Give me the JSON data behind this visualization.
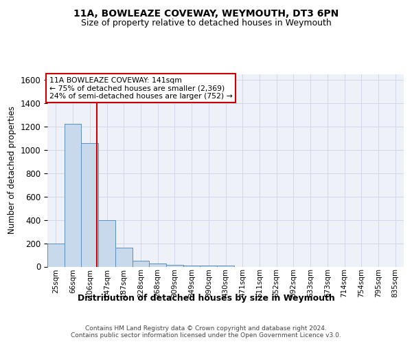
{
  "title1": "11A, BOWLEAZE COVEWAY, WEYMOUTH, DT3 6PN",
  "title2": "Size of property relative to detached houses in Weymouth",
  "xlabel": "Distribution of detached houses by size in Weymouth",
  "ylabel": "Number of detached properties",
  "bin_labels": [
    "25sqm",
    "66sqm",
    "106sqm",
    "147sqm",
    "187sqm",
    "228sqm",
    "268sqm",
    "309sqm",
    "349sqm",
    "390sqm",
    "430sqm",
    "471sqm",
    "511sqm",
    "552sqm",
    "592sqm",
    "633sqm",
    "673sqm",
    "714sqm",
    "754sqm",
    "795sqm",
    "835sqm"
  ],
  "bar_heights": [
    200,
    1220,
    1060,
    400,
    160,
    50,
    25,
    15,
    10,
    10,
    10,
    0,
    0,
    0,
    0,
    0,
    0,
    0,
    0,
    0,
    0
  ],
  "bar_color": "#c9d9ec",
  "bar_edge_color": "#5a8fc0",
  "grid_color": "#d0d8e8",
  "background_color": "#eef2f8",
  "vline_x": 2.41,
  "vline_color": "#cc0000",
  "annotation_text": "11A BOWLEAZE COVEWAY: 141sqm\n← 75% of detached houses are smaller (2,369)\n24% of semi-detached houses are larger (752) →",
  "annotation_box_color": "#ffffff",
  "annotation_box_edge": "#cc0000",
  "ylim": [
    0,
    1650
  ],
  "yticks": [
    0,
    200,
    400,
    600,
    800,
    1000,
    1200,
    1400,
    1600
  ],
  "footer": "Contains HM Land Registry data © Crown copyright and database right 2024.\nContains public sector information licensed under the Open Government Licence v3.0."
}
